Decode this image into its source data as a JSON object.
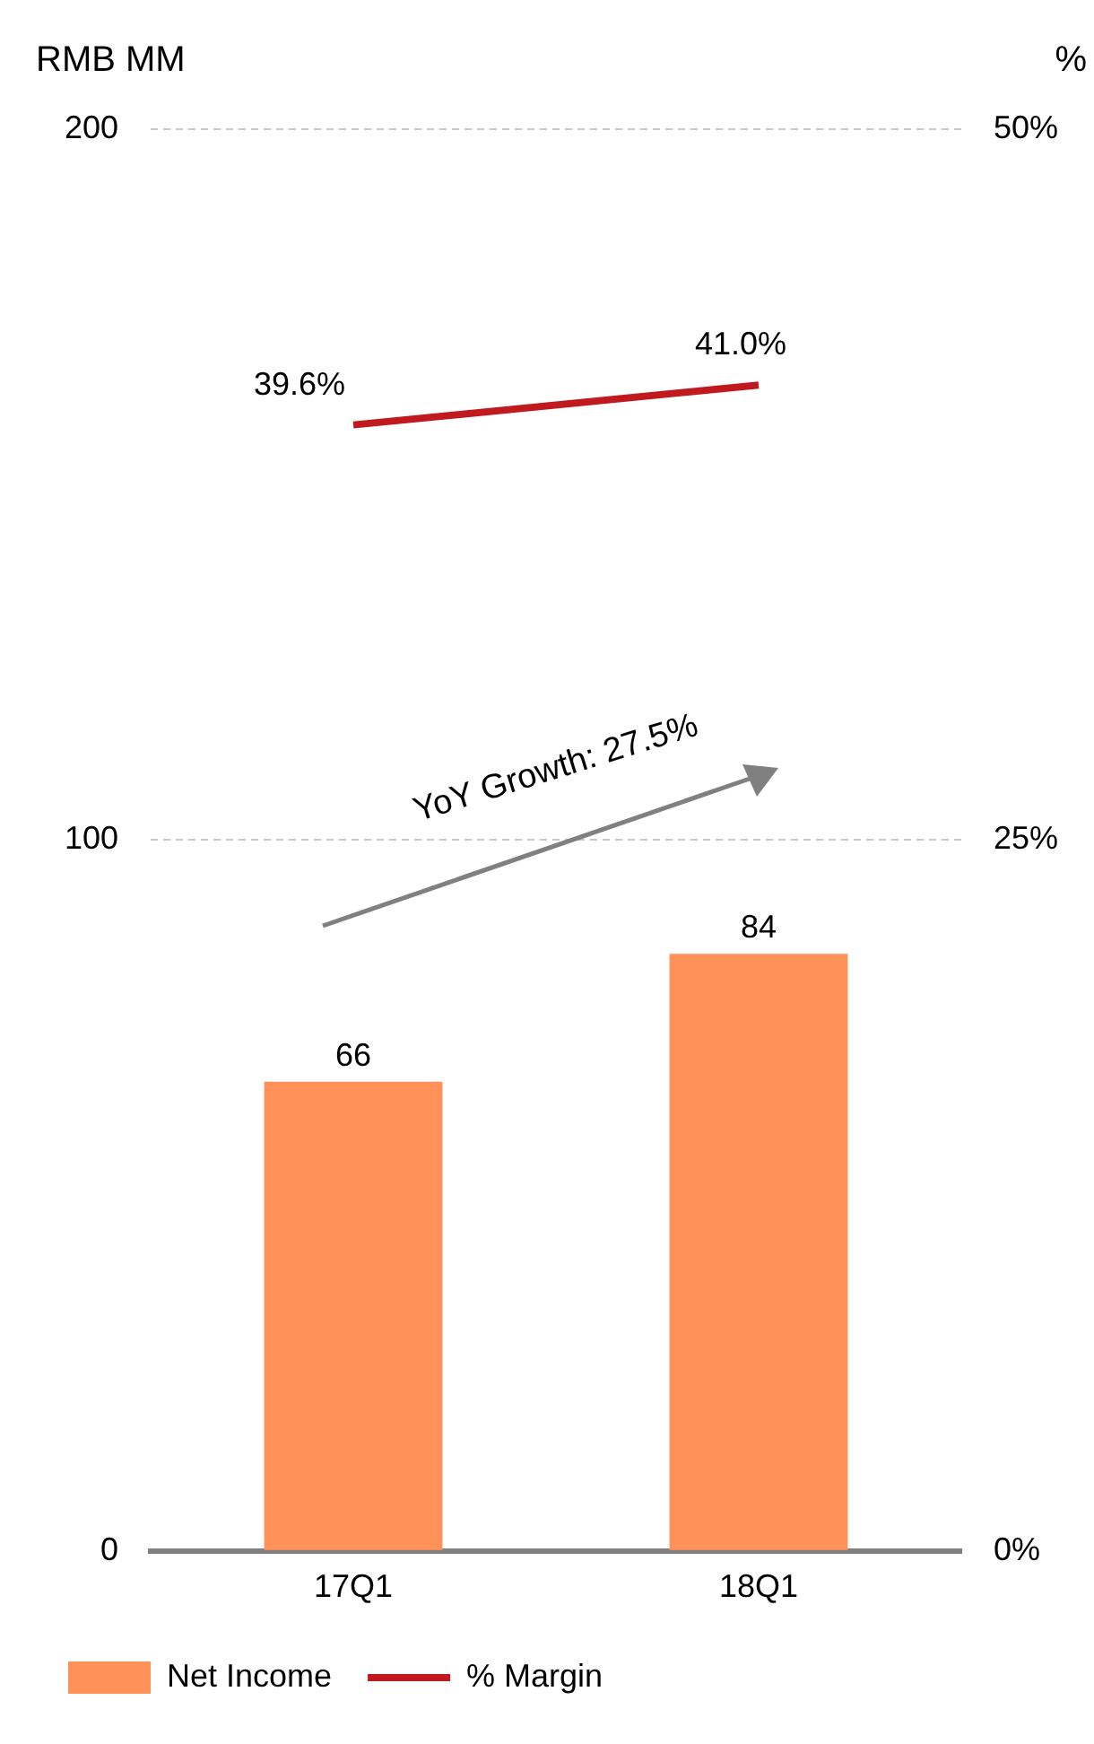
{
  "chart_data": {
    "type": "bar",
    "ylabel": "RMB MM",
    "y2label": "%",
    "categories": [
      "17Q1",
      "18Q1"
    ],
    "series": [
      {
        "name": "Net Income",
        "color": "#ff9159",
        "values": [
          66,
          84
        ],
        "value_labels": [
          "66",
          "84"
        ]
      },
      {
        "name": "% Margin",
        "type": "line",
        "axis": "y2",
        "color": "#c0191e",
        "values": [
          39.6,
          41.0
        ],
        "value_labels": [
          "39.6%",
          "41.0%"
        ]
      }
    ],
    "ylim": [
      0,
      200
    ],
    "yticks": [
      0,
      100,
      200
    ],
    "y2lim": [
      0,
      50
    ],
    "y2ticks": [
      {
        "value": 0,
        "label": "0%"
      },
      {
        "value": 25,
        "label": "25%"
      },
      {
        "value": 50,
        "label": "50%"
      }
    ],
    "grid": "y",
    "legend": "bottom",
    "marker": "none",
    "annotations": [
      "YoY Growth: 27.5%"
    ]
  }
}
